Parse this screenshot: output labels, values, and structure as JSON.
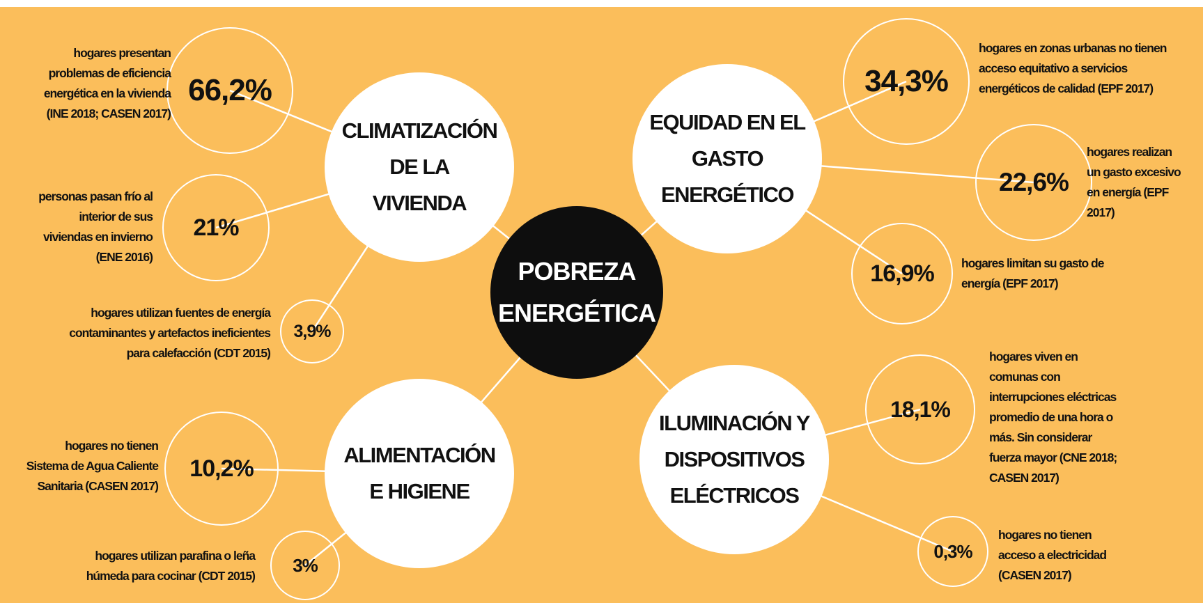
{
  "colors": {
    "background": "#FBBE5B",
    "center": "#0e0e0e",
    "circle": "#ffffff",
    "text": "#111111"
  },
  "center": {
    "title": "POBREZA\nENERGÉTICA"
  },
  "themes": [
    {
      "id": "climatizacion",
      "title": "CLIMATIZACIÓN\nDE LA\nVIVIENDA"
    },
    {
      "id": "equidad",
      "title": "EQUIDAD EN EL\nGASTO\nENERGÉTICO"
    },
    {
      "id": "alimentacion",
      "title": "ALIMENTACIÓN\nE HIGIENE"
    },
    {
      "id": "iluminacion",
      "title": "ILUMINACIÓN Y\nDISPOSITIVOS\nELÉCTRICOS"
    }
  ],
  "stats": [
    {
      "id": "s1",
      "theme": "climatizacion",
      "value": "66,2%",
      "text": "hogares presentan\nproblemas de eficiencia\nenergética en la vivienda\n(INE 2018; CASEN 2017)"
    },
    {
      "id": "s2",
      "theme": "climatizacion",
      "value": "21%",
      "text": "personas pasan frío al\ninterior de sus\nviviendas en invierno\n(ENE 2016)"
    },
    {
      "id": "s3",
      "theme": "climatizacion",
      "value": "3,9%",
      "text": "hogares utilizan fuentes de energía\ncontaminantes y artefactos ineficientes\npara calefacción (CDT 2015)"
    },
    {
      "id": "s4",
      "theme": "equidad",
      "value": "34,3%",
      "text": "hogares en zonas urbanas no tienen\nacceso equitativo a servicios\nenergéticos de calidad (EPF 2017)"
    },
    {
      "id": "s5",
      "theme": "equidad",
      "value": "22,6%",
      "text": "hogares realizan\nun gasto excesivo\nen energía (EPF\n2017)"
    },
    {
      "id": "s6",
      "theme": "equidad",
      "value": "16,9%",
      "text": "hogares limitan su gasto de\nenergía (EPF 2017)"
    },
    {
      "id": "s7",
      "theme": "alimentacion",
      "value": "10,2%",
      "text": "hogares no tienen\nSistema de Agua Caliente\nSanitaria (CASEN 2017)"
    },
    {
      "id": "s8",
      "theme": "alimentacion",
      "value": "3%",
      "text": "hogares utilizan parafina o leña\nhúmeda para cocinar (CDT 2015)"
    },
    {
      "id": "s9",
      "theme": "iluminacion",
      "value": "18,1%",
      "text": "hogares viven en\ncomunas con\ninterrupciones eléctricas\npromedio de una hora o\nmás. Sin considerar\nfuerza mayor (CNE 2018;\nCASEN 2017)"
    },
    {
      "id": "s10",
      "theme": "iluminacion",
      "value": "0,3%",
      "text": "hogares no tienen\nacceso a electricidad\n(CASEN 2017)"
    }
  ]
}
